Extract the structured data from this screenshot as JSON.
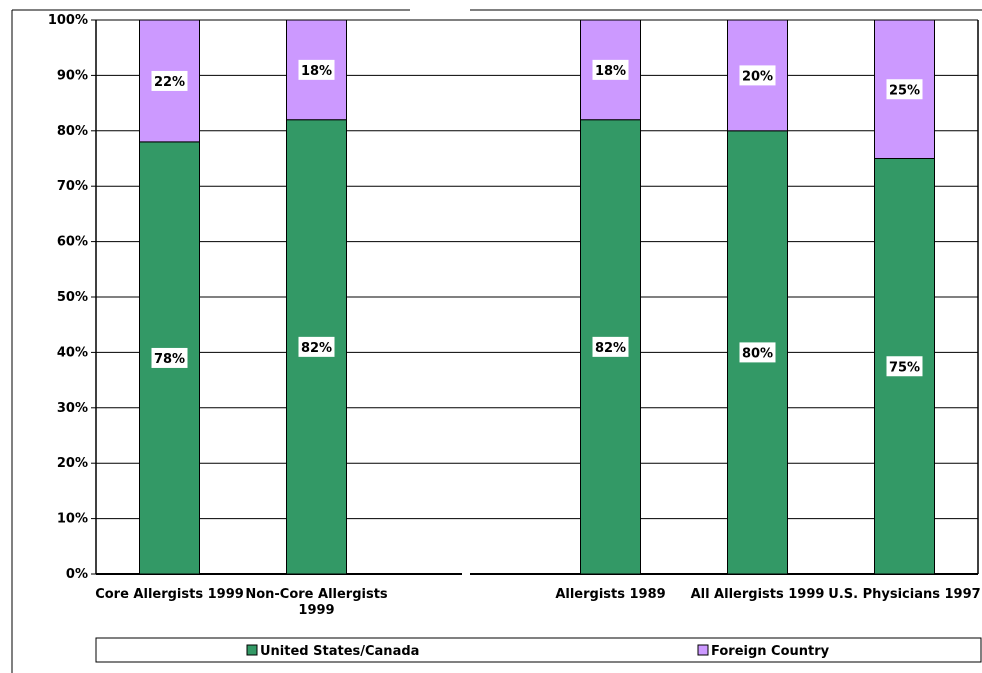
{
  "chart_data": {
    "type": "bar",
    "stacked": true,
    "percent_scale": true,
    "categories": [
      [
        "Core Allergists 1999"
      ],
      [
        "Non-Core Allergists",
        "1999"
      ],
      [],
      [
        "Allergists 1989"
      ],
      [
        "All Allergists 1999"
      ],
      [
        "U.S. Physicians 1997"
      ]
    ],
    "series": [
      {
        "name": "United States/Canada",
        "color": "#339966",
        "values": [
          78,
          82,
          null,
          82,
          80,
          75
        ]
      },
      {
        "name": "Foreign Country",
        "color": "#CC99FF",
        "values": [
          22,
          18,
          null,
          18,
          20,
          25
        ]
      }
    ],
    "data_labels": {
      "United States/Canada": [
        "78%",
        "82%",
        "",
        "82%",
        "80%",
        "75%"
      ],
      "Foreign Country": [
        "22%",
        "18%",
        "",
        "18%",
        "20%",
        "25%"
      ]
    },
    "yticks": [
      "0%",
      "10%",
      "20%",
      "30%",
      "40%",
      "50%",
      "60%",
      "70%",
      "80%",
      "90%",
      "100%"
    ],
    "ylim": [
      0,
      100
    ],
    "grid": true,
    "legend_position": "bottom",
    "title": "",
    "xlabel": "",
    "ylabel": ""
  }
}
